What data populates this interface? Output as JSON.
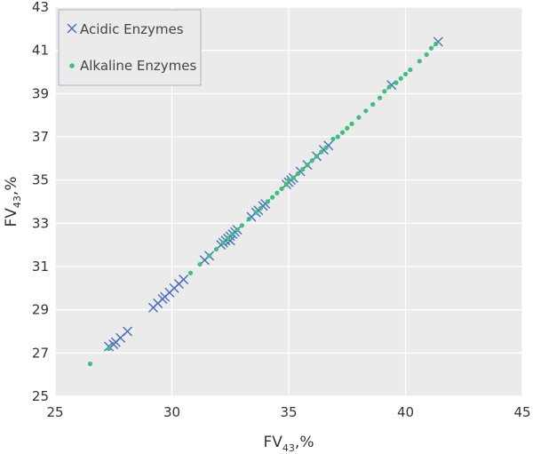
{
  "chart_data": {
    "type": "scatter",
    "xlabel": {
      "base": "FV",
      "sub": "43",
      "tail": ",%"
    },
    "ylabel": {
      "base": "FV",
      "sub": "43",
      "tail": ",%"
    },
    "xlim": [
      25,
      45
    ],
    "ylim": [
      25,
      43
    ],
    "xticks": [
      25,
      30,
      35,
      40,
      45
    ],
    "yticks": [
      25,
      27,
      29,
      31,
      33,
      35,
      37,
      39,
      41,
      43
    ],
    "grid": true,
    "legend_position": "top-left",
    "plot_background": "#ebebeb",
    "series": [
      {
        "name": "Acidic Enzymes",
        "marker": "x",
        "color": "#4a6cbf",
        "points": [
          [
            27.3,
            27.3
          ],
          [
            27.5,
            27.4
          ],
          [
            27.6,
            27.5
          ],
          [
            27.8,
            27.7
          ],
          [
            28.1,
            28.0
          ],
          [
            29.2,
            29.1
          ],
          [
            29.4,
            29.3
          ],
          [
            29.6,
            29.5
          ],
          [
            29.7,
            29.6
          ],
          [
            29.9,
            29.8
          ],
          [
            30.1,
            30.0
          ],
          [
            30.3,
            30.2
          ],
          [
            30.5,
            30.4
          ],
          [
            31.4,
            31.3
          ],
          [
            31.6,
            31.5
          ],
          [
            32.1,
            32.0
          ],
          [
            32.2,
            32.1
          ],
          [
            32.3,
            32.2
          ],
          [
            32.4,
            32.3
          ],
          [
            32.5,
            32.4
          ],
          [
            32.6,
            32.5
          ],
          [
            32.7,
            32.6
          ],
          [
            32.8,
            32.7
          ],
          [
            32.5,
            32.2
          ],
          [
            33.4,
            33.3
          ],
          [
            33.6,
            33.5
          ],
          [
            33.7,
            33.6
          ],
          [
            33.9,
            33.8
          ],
          [
            34.0,
            33.9
          ],
          [
            34.9,
            34.8
          ],
          [
            35.0,
            34.9
          ],
          [
            35.1,
            35.0
          ],
          [
            35.2,
            35.1
          ],
          [
            35.5,
            35.4
          ],
          [
            35.8,
            35.7
          ],
          [
            36.2,
            36.1
          ],
          [
            36.5,
            36.4
          ],
          [
            36.7,
            36.6
          ],
          [
            39.4,
            39.4
          ],
          [
            41.4,
            41.4
          ]
        ]
      },
      {
        "name": "Alkaline Enzymes",
        "marker": "dot",
        "color": "#3cbf7f",
        "points": [
          [
            26.5,
            26.5
          ],
          [
            27.3,
            27.2
          ],
          [
            30.8,
            30.7
          ],
          [
            31.2,
            31.1
          ],
          [
            31.6,
            31.5
          ],
          [
            31.9,
            31.8
          ],
          [
            32.2,
            32.1
          ],
          [
            32.4,
            32.3
          ],
          [
            32.6,
            32.5
          ],
          [
            32.8,
            32.7
          ],
          [
            33.0,
            32.9
          ],
          [
            33.3,
            33.2
          ],
          [
            33.6,
            33.5
          ],
          [
            33.8,
            33.7
          ],
          [
            34.1,
            34.0
          ],
          [
            34.3,
            34.2
          ],
          [
            34.5,
            34.4
          ],
          [
            34.7,
            34.6
          ],
          [
            34.9,
            34.8
          ],
          [
            35.0,
            35.0
          ],
          [
            35.2,
            35.1
          ],
          [
            35.4,
            35.3
          ],
          [
            35.6,
            35.5
          ],
          [
            35.8,
            35.7
          ],
          [
            36.0,
            35.9
          ],
          [
            36.2,
            36.1
          ],
          [
            36.4,
            36.3
          ],
          [
            36.6,
            36.5
          ],
          [
            36.9,
            36.9
          ],
          [
            37.1,
            37.0
          ],
          [
            37.3,
            37.2
          ],
          [
            37.5,
            37.4
          ],
          [
            37.7,
            37.6
          ],
          [
            38.0,
            37.9
          ],
          [
            38.3,
            38.2
          ],
          [
            38.6,
            38.5
          ],
          [
            38.9,
            38.8
          ],
          [
            39.1,
            39.1
          ],
          [
            39.3,
            39.3
          ],
          [
            39.6,
            39.5
          ],
          [
            39.8,
            39.7
          ],
          [
            40.0,
            39.9
          ],
          [
            40.2,
            40.1
          ],
          [
            40.6,
            40.5
          ],
          [
            40.9,
            40.8
          ],
          [
            41.1,
            41.1
          ],
          [
            41.3,
            41.3
          ]
        ]
      }
    ]
  }
}
